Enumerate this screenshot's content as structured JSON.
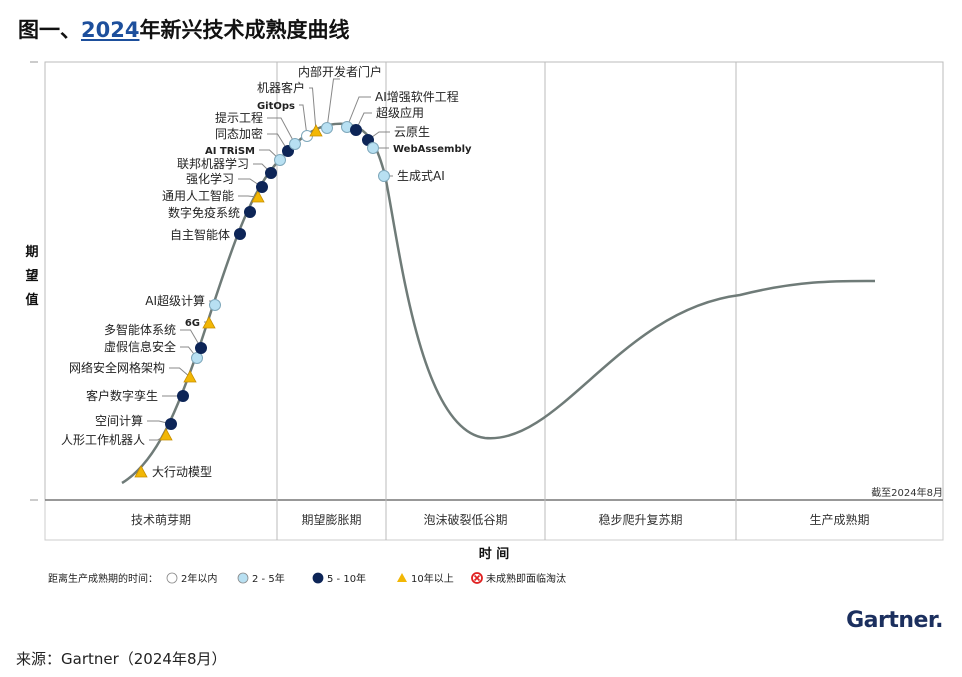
{
  "title": {
    "prefix": "图一、",
    "year": "2024",
    "suffix": "年新兴技术成熟度曲线"
  },
  "source": "来源：Gartner（2024年8月）",
  "logo": "Gartner.",
  "chart_data": {
    "type": "hype-cycle",
    "ylabel": [
      "期",
      "望",
      "值"
    ],
    "xlabel": "时 间",
    "as_of": "截至2024年8月",
    "phases": [
      "技术萌芽期",
      "期望膨胀期",
      "泡沫破裂低谷期",
      "稳步爬升复苏期",
      "生产成熟期"
    ],
    "legend": {
      "title": "距离生产成熟期的时间：",
      "items": [
        {
          "key": "lt2",
          "label": "2年以内",
          "color": "#ffffff"
        },
        {
          "key": "2to5",
          "label": "2 - 5年",
          "color": "#b8e0f2"
        },
        {
          "key": "5to10",
          "label": "5 - 10年",
          "color": "#0d2557"
        },
        {
          "key": "gt10",
          "label": "10年以上",
          "color": "#f2b705"
        },
        {
          "key": "obsolete",
          "label": "未成熟即面临淘汰",
          "color": "#e02020"
        }
      ]
    },
    "technologies": [
      {
        "name": "大行动模型",
        "phase": "技术萌芽期",
        "time": "gt10"
      },
      {
        "name": "人形工作机器人",
        "phase": "技术萌芽期",
        "time": "gt10"
      },
      {
        "name": "空间计算",
        "phase": "技术萌芽期",
        "time": "5to10"
      },
      {
        "name": "客户数字孪生",
        "phase": "技术萌芽期",
        "time": "5to10"
      },
      {
        "name": "网络安全网格架构",
        "phase": "技术萌芽期",
        "time": "gt10"
      },
      {
        "name": "虚假信息安全",
        "phase": "技术萌芽期",
        "time": "2to5"
      },
      {
        "name": "多智能体系统",
        "phase": "技术萌芽期",
        "time": "5to10"
      },
      {
        "name": "6G",
        "phase": "技术萌芽期",
        "time": "gt10"
      },
      {
        "name": "AI超级计算",
        "phase": "技术萌芽期",
        "time": "2to5"
      },
      {
        "name": "自主智能体",
        "phase": "技术萌芽期",
        "time": "5to10"
      },
      {
        "name": "数字免疫系统",
        "phase": "技术萌芽期",
        "time": "5to10"
      },
      {
        "name": "通用人工智能",
        "phase": "技术萌芽期",
        "time": "gt10"
      },
      {
        "name": "强化学习",
        "phase": "技术萌芽期",
        "time": "5to10"
      },
      {
        "name": "联邦机器学习",
        "phase": "技术萌芽期",
        "time": "5to10"
      },
      {
        "name": "AI TRiSM",
        "phase": "期望膨胀期",
        "time": "2to5"
      },
      {
        "name": "同态加密",
        "phase": "期望膨胀期",
        "time": "5to10"
      },
      {
        "name": "提示工程",
        "phase": "期望膨胀期",
        "time": "2to5"
      },
      {
        "name": "GitOps",
        "phase": "期望膨胀期",
        "time": "lt2"
      },
      {
        "name": "机器客户",
        "phase": "期望膨胀期",
        "time": "gt10"
      },
      {
        "name": "内部开发者门户",
        "phase": "期望膨胀期",
        "time": "2to5"
      },
      {
        "name": "AI增强软件工程",
        "phase": "期望膨胀期",
        "time": "2to5"
      },
      {
        "name": "超级应用",
        "phase": "期望膨胀期",
        "time": "5to10"
      },
      {
        "name": "云原生",
        "phase": "期望膨胀期",
        "time": "5to10"
      },
      {
        "name": "WebAssembly",
        "phase": "期望膨胀期",
        "time": "2to5"
      },
      {
        "name": "生成式AI",
        "phase": "泡沫破裂低谷期",
        "time": "2to5"
      }
    ]
  }
}
